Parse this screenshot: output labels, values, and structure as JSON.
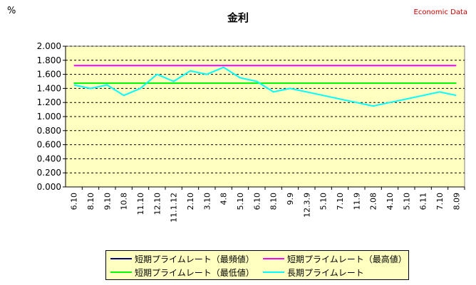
{
  "chart_data": {
    "type": "line",
    "title": "金利",
    "unit_label": "%",
    "source_label": "Economic Data",
    "ylim": [
      0,
      2.0
    ],
    "yticks": [
      "0.000",
      "0.200",
      "0.400",
      "0.600",
      "0.800",
      "1.000",
      "1.200",
      "1.400",
      "1.600",
      "1.800",
      "2.000"
    ],
    "grid": true,
    "legend_position": "bottom",
    "categories": [
      "6.10",
      "8.10",
      "9.10",
      "10.8",
      "11.10",
      "12.10",
      "11.1.12",
      "2.10",
      "3.10",
      "4.8",
      "5.10",
      "6.10",
      "8.10",
      "9.9",
      "12.3.9",
      "5.10",
      "7.10",
      "11.9",
      "2.08",
      "4.10",
      "5.10",
      "6.11",
      "7.10",
      "8.09"
    ],
    "series": [
      {
        "name": "短期プライムレート（最頻値）",
        "color": "#000080",
        "values": [
          1.475,
          1.475,
          1.475,
          1.475,
          1.475,
          1.475,
          1.475,
          1.475,
          1.475,
          1.475,
          1.475,
          1.475,
          1.475,
          1.475,
          1.475,
          1.475,
          1.475,
          1.475,
          1.475,
          1.475,
          1.475,
          1.475,
          1.475,
          1.475
        ]
      },
      {
        "name": "短期プライムレート（最高値）",
        "color": "#ff00ff",
        "values": [
          1.725,
          1.725,
          1.725,
          1.725,
          1.725,
          1.725,
          1.725,
          1.725,
          1.725,
          1.725,
          1.725,
          1.725,
          1.725,
          1.725,
          1.725,
          1.725,
          1.725,
          1.725,
          1.725,
          1.725,
          1.725,
          1.725,
          1.725,
          1.725
        ]
      },
      {
        "name": "短期プライムレート（最低値）",
        "color": "#00ff00",
        "values": [
          1.475,
          1.475,
          1.475,
          1.475,
          1.475,
          1.475,
          1.475,
          1.475,
          1.475,
          1.475,
          1.475,
          1.475,
          1.475,
          1.475,
          1.475,
          1.475,
          1.475,
          1.475,
          1.475,
          1.475,
          1.475,
          1.475,
          1.475,
          1.475
        ]
      },
      {
        "name": "長期プライムレート",
        "color": "#00ffff",
        "values": [
          1.45,
          1.4,
          1.45,
          1.3,
          1.4,
          1.6,
          1.5,
          1.65,
          1.6,
          1.7,
          1.55,
          1.5,
          1.35,
          1.4,
          1.35,
          1.3,
          1.25,
          1.2,
          1.15,
          1.2,
          1.25,
          1.3,
          1.35,
          1.3
        ]
      }
    ]
  }
}
